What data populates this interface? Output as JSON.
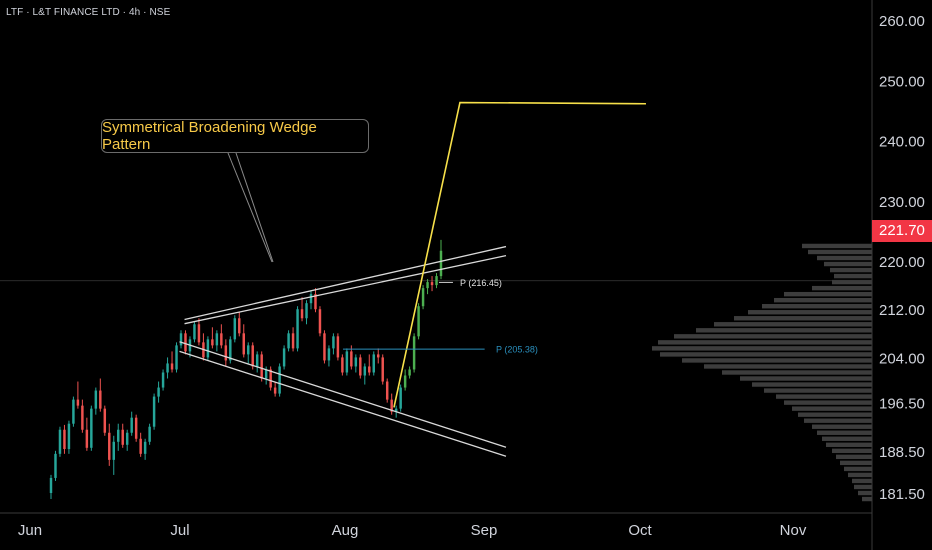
{
  "header": {
    "title": "LTF · L&T FINANCE LTD · 4h · NSE"
  },
  "colors": {
    "up": "#26a69a",
    "up_bright": "#4caf50",
    "down": "#ef5350",
    "wedge": "#d9d9d9",
    "target": "#f7e04a",
    "level_blue": "#2a8fbd",
    "price_tag": "#f23645",
    "volume_profile": "#5d5d5d"
  },
  "annotation": {
    "text": "Symmetrical Broadening Wedge Pattern"
  },
  "pivots": [
    {
      "label": "P (216.45)",
      "price": 216.45
    },
    {
      "label": "P (205.38)",
      "price": 205.38
    }
  ],
  "current_price": {
    "label": "221.70",
    "value": 221.7
  },
  "chart_data": {
    "type": "candlestick",
    "title": "LTF · L&T FINANCE LTD · 4h · NSE",
    "y_ticks": [
      "260.00",
      "250.00",
      "240.00",
      "230.00",
      "220.00",
      "212.00",
      "204.00",
      "196.50",
      "188.50",
      "181.50"
    ],
    "y_tick_values": [
      260,
      250,
      240,
      230,
      220,
      212,
      204,
      196.5,
      188.5,
      181.5
    ],
    "x_ticks": [
      "Jun",
      "Jul",
      "Aug",
      "Sep",
      "Oct",
      "Nov"
    ],
    "ylim": [
      179,
      264
    ],
    "ohlc": [
      [
        181.5,
        184.5,
        180.5,
        184.0
      ],
      [
        184.0,
        188.5,
        183.5,
        188.0
      ],
      [
        188.0,
        192.5,
        187.5,
        192.0
      ],
      [
        192.0,
        192.8,
        188.0,
        188.8
      ],
      [
        188.8,
        193.5,
        188.0,
        193.0
      ],
      [
        193.0,
        197.5,
        192.5,
        197.0
      ],
      [
        197.0,
        200.0,
        195.5,
        196.0
      ],
      [
        196.0,
        197.0,
        191.5,
        192.0
      ],
      [
        192.0,
        194.0,
        188.5,
        189.0
      ],
      [
        189.0,
        196.0,
        188.5,
        195.5
      ],
      [
        195.5,
        199.0,
        194.5,
        198.5
      ],
      [
        198.5,
        200.5,
        195.0,
        195.5
      ],
      [
        195.5,
        196.0,
        191.0,
        191.5
      ],
      [
        191.5,
        193.0,
        186.0,
        187.0
      ],
      [
        187.0,
        191.0,
        184.5,
        190.0
      ],
      [
        190.0,
        193.0,
        188.5,
        192.0
      ],
      [
        192.0,
        193.0,
        189.0,
        189.5
      ],
      [
        189.5,
        192.0,
        188.5,
        191.5
      ],
      [
        191.5,
        195.0,
        191.0,
        194.0
      ],
      [
        194.0,
        194.5,
        190.0,
        190.5
      ],
      [
        190.5,
        191.5,
        187.5,
        188.0
      ],
      [
        188.0,
        190.5,
        187.0,
        190.0
      ],
      [
        190.0,
        193.0,
        189.5,
        192.5
      ],
      [
        192.5,
        198.0,
        192.0,
        197.5
      ],
      [
        197.5,
        200.0,
        196.5,
        199.0
      ],
      [
        199.0,
        202.0,
        198.5,
        201.5
      ],
      [
        201.5,
        204.0,
        200.5,
        203.0
      ],
      [
        203.0,
        205.0,
        201.5,
        202.0
      ],
      [
        202.0,
        206.5,
        201.5,
        206.0
      ],
      [
        206.0,
        208.5,
        205.5,
        208.0
      ],
      [
        208.0,
        208.5,
        204.5,
        205.0
      ],
      [
        205.0,
        207.5,
        204.0,
        207.0
      ],
      [
        207.0,
        210.0,
        206.5,
        209.5
      ],
      [
        209.5,
        210.5,
        206.0,
        206.5
      ],
      [
        206.5,
        208.0,
        203.5,
        204.0
      ],
      [
        204.0,
        207.5,
        203.5,
        207.0
      ],
      [
        207.0,
        209.0,
        205.5,
        206.0
      ],
      [
        206.0,
        208.5,
        205.0,
        208.0
      ],
      [
        208.0,
        209.5,
        205.5,
        206.0
      ],
      [
        206.0,
        207.0,
        202.5,
        203.5
      ],
      [
        203.5,
        207.5,
        203.0,
        207.0
      ],
      [
        207.0,
        211.0,
        206.5,
        210.5
      ],
      [
        210.5,
        211.5,
        207.5,
        208.0
      ],
      [
        208.0,
        209.5,
        204.0,
        204.5
      ],
      [
        204.5,
        206.5,
        203.0,
        206.0
      ],
      [
        206.0,
        206.5,
        202.0,
        202.5
      ],
      [
        202.5,
        205.0,
        201.5,
        204.5
      ],
      [
        204.5,
        205.0,
        200.0,
        200.5
      ],
      [
        200.5,
        202.5,
        199.5,
        202.0
      ],
      [
        202.0,
        202.5,
        198.5,
        199.0
      ],
      [
        199.0,
        200.0,
        197.5,
        198.0
      ],
      [
        198.0,
        203.0,
        197.5,
        202.5
      ],
      [
        202.5,
        206.0,
        202.0,
        205.5
      ],
      [
        205.5,
        208.5,
        205.0,
        208.0
      ],
      [
        208.0,
        209.0,
        205.0,
        205.5
      ],
      [
        205.5,
        212.5,
        205.0,
        212.0
      ],
      [
        212.0,
        214.0,
        210.0,
        210.5
      ],
      [
        210.5,
        213.5,
        209.5,
        213.0
      ],
      [
        213.0,
        215.0,
        212.0,
        214.5
      ],
      [
        214.5,
        215.5,
        211.5,
        212.0
      ],
      [
        212.0,
        212.5,
        207.5,
        208.0
      ],
      [
        208.0,
        208.5,
        203.0,
        203.5
      ],
      [
        203.5,
        206.0,
        202.5,
        205.5
      ],
      [
        205.5,
        208.0,
        204.5,
        207.5
      ],
      [
        207.5,
        208.0,
        203.5,
        204.0
      ],
      [
        204.0,
        204.5,
        201.0,
        201.5
      ],
      [
        201.5,
        205.5,
        201.0,
        205.0
      ],
      [
        205.0,
        206.0,
        202.0,
        202.5
      ],
      [
        202.5,
        204.5,
        201.5,
        204.0
      ],
      [
        204.0,
        204.5,
        200.5,
        201.0
      ],
      [
        201.0,
        203.0,
        199.5,
        202.5
      ],
      [
        202.5,
        204.5,
        201.0,
        201.5
      ],
      [
        201.5,
        205.0,
        201.0,
        204.5
      ],
      [
        204.5,
        205.5,
        203.0,
        204.0
      ],
      [
        204.0,
        204.5,
        199.5,
        200.0
      ],
      [
        200.0,
        200.5,
        196.5,
        197.0
      ],
      [
        197.0,
        198.0,
        194.5,
        195.0
      ],
      [
        195.0,
        196.0,
        194.0,
        195.5
      ],
      [
        195.5,
        199.5,
        195.0,
        199.0
      ],
      [
        199.0,
        202.0,
        198.5,
        201.0
      ],
      [
        201.0,
        202.5,
        200.5,
        202.0
      ],
      [
        202.0,
        208.0,
        201.5,
        207.5
      ],
      [
        207.5,
        213.0,
        207.0,
        212.5
      ],
      [
        212.5,
        216.0,
        212.0,
        215.5
      ],
      [
        215.5,
        217.0,
        214.5,
        216.5
      ],
      [
        216.5,
        217.5,
        215.0,
        216.0
      ],
      [
        216.0,
        218.0,
        215.5,
        217.5
      ],
      [
        217.5,
        223.5,
        217.0,
        221.7
      ]
    ],
    "wedge": {
      "upper_outer": [
        [
          0.198,
          210.3
        ],
        [
          0.5429,
          222.4
        ]
      ],
      "upper_inner": [
        [
          0.198,
          209.6
        ],
        [
          0.5429,
          220.9
        ]
      ],
      "lower_outer": [
        [
          0.1926,
          206.6
        ],
        [
          0.5429,
          189.1
        ]
      ],
      "lower_inner": [
        [
          0.1926,
          205.0
        ],
        [
          0.5429,
          187.6
        ]
      ]
    },
    "target_path": [
      [
        0.4227,
        195.7
      ],
      [
        0.4935,
        246.3
      ],
      [
        0.6931,
        246.1
      ]
    ],
    "pivot_lines": [
      {
        "price": 216.45,
        "x_start": 0.471,
        "x_end": 0.486
      },
      {
        "price": 205.38,
        "x_start": 0.368,
        "x_end": 0.52
      }
    ],
    "volume_profile": [
      [
        222.5,
        70
      ],
      [
        221.5,
        64
      ],
      [
        220.5,
        55
      ],
      [
        219.5,
        48
      ],
      [
        218.5,
        42
      ],
      [
        217.5,
        38
      ],
      [
        216.5,
        40
      ],
      [
        215.5,
        60
      ],
      [
        214.5,
        88
      ],
      [
        213.5,
        98
      ],
      [
        212.5,
        110
      ],
      [
        211.5,
        124
      ],
      [
        210.5,
        138
      ],
      [
        209.5,
        158
      ],
      [
        208.5,
        176
      ],
      [
        207.5,
        198
      ],
      [
        206.5,
        214
      ],
      [
        205.5,
        220
      ],
      [
        204.5,
        212
      ],
      [
        203.5,
        190
      ],
      [
        202.5,
        168
      ],
      [
        201.5,
        150
      ],
      [
        200.5,
        132
      ],
      [
        199.5,
        120
      ],
      [
        198.5,
        108
      ],
      [
        197.5,
        96
      ],
      [
        196.5,
        88
      ],
      [
        195.5,
        80
      ],
      [
        194.5,
        74
      ],
      [
        193.5,
        68
      ],
      [
        192.5,
        60
      ],
      [
        191.5,
        55
      ],
      [
        190.5,
        50
      ],
      [
        189.5,
        46
      ],
      [
        188.5,
        40
      ],
      [
        187.5,
        36
      ],
      [
        186.5,
        32
      ],
      [
        185.5,
        28
      ],
      [
        184.5,
        24
      ],
      [
        183.5,
        20
      ],
      [
        182.5,
        18
      ],
      [
        181.5,
        14
      ],
      [
        180.5,
        10
      ]
    ]
  }
}
